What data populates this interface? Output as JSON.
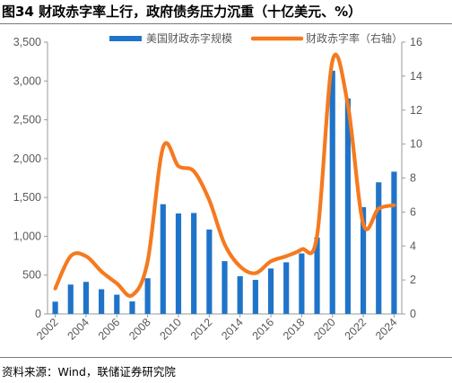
{
  "figure": {
    "title": "图34 财政赤字率上行，政府债务压力沉重（十亿美元、%）",
    "source": "资料来源：Wind，联储证券研究院"
  },
  "colors": {
    "bar": "#1f74c9",
    "line": "#f57a1f",
    "axis": "#9a9a9a",
    "text": "#595959"
  },
  "chart_data": {
    "type": "bar",
    "title": "图34 财政赤字率上行，政府债务压力沉重（十亿美元、%）",
    "x": [
      2002,
      2003,
      2004,
      2005,
      2006,
      2007,
      2008,
      2009,
      2010,
      2011,
      2012,
      2013,
      2014,
      2015,
      2016,
      2017,
      2018,
      2019,
      2020,
      2021,
      2022,
      2023,
      2024
    ],
    "x_tick_labels": [
      "2002",
      "2004",
      "2006",
      "2008",
      "2010",
      "2012",
      "2014",
      "2016",
      "2018",
      "2020",
      "2022",
      "2024"
    ],
    "y_left_ticks": [
      "0",
      "500",
      "1,000",
      "1,500",
      "2,000",
      "2,500",
      "3,000",
      "3,500"
    ],
    "y_left_range": [
      0,
      3500
    ],
    "y_right_ticks": [
      "0",
      "2",
      "4",
      "6",
      "8",
      "10",
      "12",
      "14",
      "16"
    ],
    "y_right_range": [
      0,
      16
    ],
    "grid": false,
    "legend_position": "top",
    "series": [
      {
        "name": "美国财政赤字规模",
        "type": "bar",
        "axis": "left",
        "values": [
          158,
          378,
          413,
          318,
          248,
          161,
          459,
          1413,
          1294,
          1300,
          1087,
          680,
          485,
          438,
          585,
          665,
          779,
          984,
          3132,
          2775,
          1375,
          1695,
          1832
        ]
      },
      {
        "name": "财政赤字率（右轴）",
        "type": "line",
        "axis": "right",
        "values": [
          1.5,
          3.4,
          3.4,
          2.5,
          1.8,
          1.1,
          3.1,
          9.8,
          8.7,
          8.4,
          6.7,
          4.1,
          2.8,
          2.4,
          3.1,
          3.4,
          3.8,
          4.6,
          14.9,
          12.3,
          5.3,
          6.2,
          6.4
        ]
      }
    ]
  }
}
